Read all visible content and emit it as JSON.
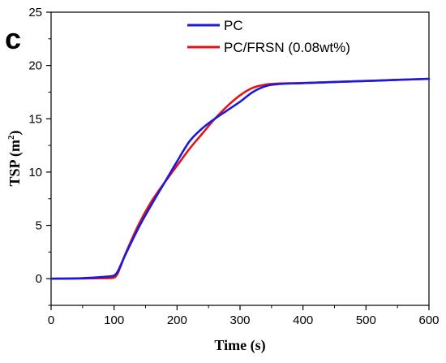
{
  "panel_label": "c",
  "chart_data": {
    "type": "line",
    "xlabel": "Time (s)",
    "ylabel_main": "TSP (m",
    "ylabel_sup": "2",
    "ylabel_close": ")",
    "xlim": [
      0,
      600
    ],
    "ylim": [
      -2.5,
      25
    ],
    "x_ticks": [
      0,
      100,
      200,
      300,
      400,
      500,
      600
    ],
    "y_ticks": [
      0,
      5,
      10,
      15,
      20,
      25
    ],
    "x_tick_labels": [
      "0",
      "100",
      "200",
      "300",
      "400",
      "500",
      "600"
    ],
    "y_tick_labels": [
      "0",
      "5",
      "10",
      "15",
      "20",
      "25"
    ],
    "legend_position": "top-right",
    "series": [
      {
        "name": "PC",
        "color": "#1a1adb",
        "x": [
          0,
          50,
          90,
          100,
          105,
          110,
          120,
          140,
          160,
          180,
          200,
          220,
          240,
          260,
          280,
          300,
          320,
          340,
          360,
          400,
          450,
          500,
          550,
          600
        ],
        "y": [
          0,
          0.05,
          0.2,
          0.3,
          0.6,
          1.2,
          2.5,
          4.9,
          7.0,
          9.0,
          11.0,
          12.9,
          14.1,
          15.0,
          15.8,
          16.6,
          17.5,
          18.05,
          18.25,
          18.35,
          18.45,
          18.55,
          18.65,
          18.75
        ]
      },
      {
        "name": "PC/FRSN (0.08wt%)",
        "color": "#e0151a",
        "x": [
          0,
          50,
          90,
          100,
          105,
          110,
          120,
          140,
          160,
          180,
          200,
          220,
          240,
          260,
          280,
          300,
          320,
          340,
          360,
          400,
          450,
          500,
          550,
          600
        ],
        "y": [
          0,
          0.02,
          0.05,
          0.1,
          0.4,
          1.1,
          2.6,
          5.2,
          7.3,
          9.0,
          10.6,
          12.2,
          13.6,
          15.0,
          16.2,
          17.2,
          17.9,
          18.2,
          18.3,
          18.35,
          18.45,
          18.55,
          18.65,
          18.75
        ]
      }
    ]
  }
}
